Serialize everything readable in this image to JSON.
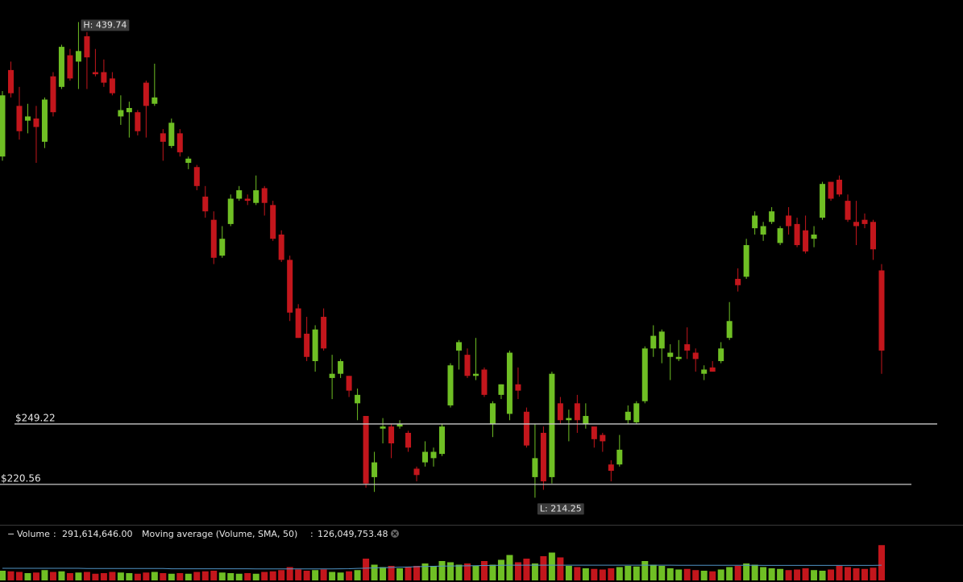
{
  "chart_data": [
    {
      "type": "candlestick",
      "categories": [
        null,
        null,
        null,
        null,
        null,
        null,
        null,
        null,
        null,
        null,
        null,
        null,
        null,
        null,
        null,
        null,
        null,
        null,
        null,
        null,
        null,
        null,
        null,
        null,
        null,
        null,
        null,
        null,
        null,
        null,
        null,
        null,
        null,
        null,
        null,
        null,
        null,
        null,
        null,
        null,
        null,
        null,
        null,
        null,
        null,
        null,
        null,
        null,
        null,
        null,
        null,
        null,
        null,
        null,
        null,
        null,
        null,
        null,
        null,
        null,
        null,
        null,
        null,
        null,
        null,
        null,
        null,
        null,
        null,
        null,
        null,
        null,
        null,
        null,
        null,
        null,
        null,
        null,
        null,
        null,
        null,
        null,
        null,
        null,
        null,
        null,
        null,
        null,
        null,
        null,
        null,
        null,
        null,
        null,
        null,
        null,
        null,
        null,
        null,
        null,
        null,
        null,
        null,
        null,
        null
      ],
      "open": [
        376,
        417,
        400,
        393,
        394,
        383,
        414,
        409,
        424,
        421,
        433,
        416,
        416,
        413,
        395,
        397,
        397,
        411,
        401,
        387,
        381,
        387,
        373,
        371,
        357,
        346,
        329,
        344,
        356,
        356,
        354,
        361,
        353,
        339,
        327,
        304,
        292,
        279,
        300,
        271,
        273,
        272,
        259,
        253,
        224,
        247,
        248,
        248,
        245,
        228,
        231,
        233,
        235,
        258,
        284,
        282,
        272,
        275,
        249,
        263,
        254,
        268,
        255,
        224,
        245,
        224,
        259,
        251,
        259,
        249,
        248,
        244,
        230,
        230,
        251,
        250,
        260,
        285,
        285,
        281,
        280,
        287,
        283,
        273,
        276,
        279,
        290,
        318,
        319,
        342,
        339,
        345,
        335,
        348,
        344,
        341,
        337,
        347,
        364,
        365,
        355,
        345,
        346,
        345,
        322
      ],
      "high": [
        407,
        421,
        409,
        401,
        400,
        404,
        416,
        429,
        427,
        439.74,
        435,
        427,
        422,
        416,
        405,
        402,
        398,
        412,
        420,
        389,
        394,
        389,
        376,
        372,
        362,
        350,
        343,
        358,
        362,
        358,
        367,
        362,
        355,
        341,
        329,
        306,
        300,
        296,
        304,
        282,
        280,
        272,
        266,
        253,
        236,
        252,
        249,
        251,
        246,
        229,
        241,
        238,
        249,
        278,
        289,
        285,
        290,
        276,
        260,
        268,
        284,
        276,
        257,
        249,
        248,
        274,
        262,
        256,
        263,
        259,
        248,
        245,
        232,
        244,
        258,
        260,
        286,
        296,
        294,
        287,
        289,
        295,
        285,
        277,
        279,
        288,
        307,
        323,
        337,
        350,
        345,
        352,
        343,
        352,
        347,
        348,
        343,
        364,
        364,
        367,
        358,
        355,
        349,
        346,
        325
      ],
      "low": [
        374,
        404,
        384,
        387,
        373,
        380,
        395,
        408,
        412,
        408,
        408,
        414,
        409,
        405,
        391,
        385,
        386,
        385,
        400,
        374,
        380,
        376,
        370,
        360,
        347,
        325,
        328,
        343,
        355,
        353,
        353,
        348,
        336,
        326,
        298,
        290,
        279,
        274,
        284,
        261,
        271,
        262,
        251,
        219,
        217,
        240,
        233,
        247,
        236,
        222,
        229,
        229,
        234,
        257,
        275,
        271,
        270,
        262,
        243,
        261,
        251,
        261,
        238,
        214.25,
        218,
        221,
        249,
        241,
        245,
        247,
        238,
        236,
        222,
        229,
        249,
        249,
        259,
        281,
        278,
        270,
        279,
        280,
        274,
        270,
        274,
        278,
        289,
        312,
        318,
        339,
        336,
        344,
        334,
        339,
        333,
        330,
        333,
        346,
        355,
        357,
        345,
        334,
        342,
        327,
        273
      ],
      "close": [
        405,
        406,
        388,
        395,
        390,
        403,
        397,
        428,
        413,
        426,
        423,
        415,
        411,
        406,
        398,
        399,
        388,
        400,
        404,
        383,
        392,
        378,
        375,
        362,
        350,
        328,
        337,
        356,
        360,
        355,
        360,
        354,
        337,
        327,
        302,
        290,
        281,
        294,
        285,
        273,
        279,
        265,
        263,
        221,
        231,
        248,
        240,
        249,
        238,
        225,
        236,
        236,
        248,
        277,
        288,
        272,
        273,
        263,
        259,
        268,
        283,
        265,
        239,
        233,
        222,
        273,
        251,
        252,
        251,
        253,
        242,
        241,
        227,
        237,
        255,
        259,
        285,
        291,
        293,
        283,
        281,
        284,
        280,
        275,
        274,
        285,
        298,
        315,
        334,
        348,
        343,
        350,
        342,
        343,
        334,
        331,
        339,
        363,
        356,
        358,
        346,
        343,
        344,
        332,
        284
      ],
      "ylim": [
        201.8,
        450.2
      ],
      "up_color": "#6fbf24",
      "down_color": "#c3161c",
      "price_lines": [
        {
          "value": 249.22,
          "label": "$249.22"
        },
        {
          "value": 220.56,
          "label": "$220.56"
        }
      ],
      "line_color": "#c8c8c8",
      "high_label": {
        "value": 439.74,
        "label": "H: 439.74"
      },
      "low_label": {
        "value": 214.25,
        "label": "L: 214.25"
      }
    },
    {
      "type": "bar",
      "separator": ":",
      "ylim": [
        0,
        300000000
      ],
      "series": [
        {
          "name": "Volume",
          "value_label": "291,614,646.00",
          "values": [
            80000000,
            75000000,
            70000000,
            60000000,
            65000000,
            85000000,
            70000000,
            75000000,
            60000000,
            65000000,
            70000000,
            55000000,
            60000000,
            70000000,
            65000000,
            60000000,
            55000000,
            65000000,
            70000000,
            60000000,
            55000000,
            60000000,
            55000000,
            70000000,
            75000000,
            80000000,
            65000000,
            60000000,
            55000000,
            60000000,
            55000000,
            70000000,
            75000000,
            85000000,
            110000000,
            90000000,
            80000000,
            85000000,
            90000000,
            70000000,
            65000000,
            75000000,
            85000000,
            180000000,
            130000000,
            110000000,
            120000000,
            100000000,
            110000000,
            120000000,
            140000000,
            120000000,
            160000000,
            150000000,
            130000000,
            140000000,
            120000000,
            160000000,
            130000000,
            170000000,
            210000000,
            150000000,
            180000000,
            140000000,
            200000000,
            230000000,
            190000000,
            120000000,
            110000000,
            100000000,
            95000000,
            90000000,
            100000000,
            110000000,
            120000000,
            115000000,
            160000000,
            130000000,
            120000000,
            100000000,
            90000000,
            95000000,
            85000000,
            80000000,
            75000000,
            90000000,
            110000000,
            120000000,
            140000000,
            130000000,
            110000000,
            100000000,
            95000000,
            85000000,
            90000000,
            100000000,
            85000000,
            80000000,
            90000000,
            120000000,
            110000000,
            100000000,
            95000000,
            105000000,
            291614646
          ]
        },
        {
          "name": "Moving average (Volume, SMA, 50)",
          "type": "line",
          "color": "#4f93c4",
          "value_label": "126,049,753.48",
          "values": [
            100000000,
            100000000,
            100000000,
            100000000,
            100000000,
            100000000,
            100000000,
            100000000,
            100000000,
            100000000,
            98000000,
            98000000,
            98000000,
            98000000,
            98000000,
            98000000,
            98000000,
            98000000,
            98000000,
            98000000,
            96000000,
            96000000,
            96000000,
            96000000,
            96000000,
            96000000,
            96000000,
            96000000,
            96000000,
            96000000,
            95000000,
            95000000,
            95000000,
            95000000,
            95000000,
            95000000,
            95000000,
            95000000,
            95000000,
            95000000,
            96000000,
            97000000,
            99000000,
            101000000,
            103000000,
            105000000,
            107000000,
            109000000,
            111000000,
            113000000,
            115000000,
            117000000,
            118000000,
            119000000,
            120000000,
            121000000,
            122000000,
            123000000,
            124000000,
            125000000,
            126000000,
            126000000,
            126000000,
            126000000,
            126000000,
            126000000,
            126000000,
            126000000,
            126000000,
            126000000,
            126000000,
            126000000,
            126000000,
            126000000,
            126000000,
            126000000,
            126000000,
            126000000,
            126000000,
            126000000,
            125000000,
            125000000,
            125000000,
            125000000,
            125000000,
            125000000,
            125000000,
            125000000,
            125000000,
            125000000,
            124000000,
            124000000,
            124000000,
            124000000,
            124000000,
            124000000,
            124000000,
            124000000,
            124000000,
            124000000,
            124000000,
            124000000,
            124000000,
            124000000,
            126049753.48
          ]
        }
      ]
    }
  ]
}
